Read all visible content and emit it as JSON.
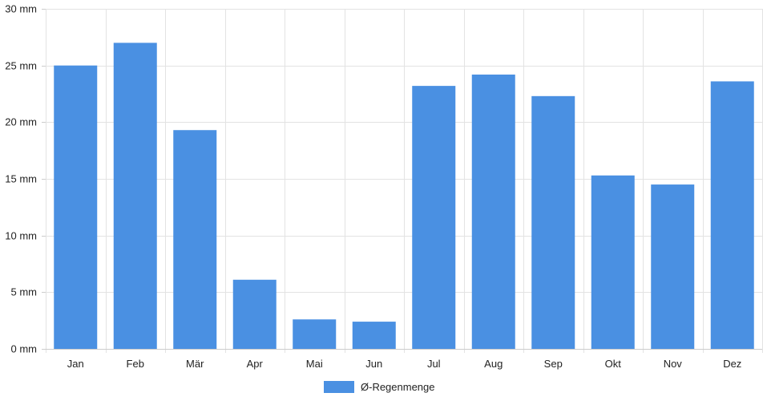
{
  "chart_data": {
    "type": "bar",
    "categories": [
      "Jan",
      "Feb",
      "Mär",
      "Apr",
      "Mai",
      "Jun",
      "Jul",
      "Aug",
      "Sep",
      "Okt",
      "Nov",
      "Dez"
    ],
    "series": [
      {
        "name": "Ø-Regenmenge",
        "values": [
          25.0,
          27.0,
          19.3,
          6.1,
          2.6,
          2.4,
          23.2,
          24.2,
          22.3,
          15.3,
          14.5,
          23.6
        ]
      }
    ],
    "y_ticks": [
      0,
      5,
      10,
      15,
      20,
      25,
      30
    ],
    "y_unit": "mm",
    "ylim": [
      0,
      30
    ],
    "grid": true,
    "legend_position": "bottom",
    "colors": {
      "bar": "#4a90e2"
    }
  }
}
